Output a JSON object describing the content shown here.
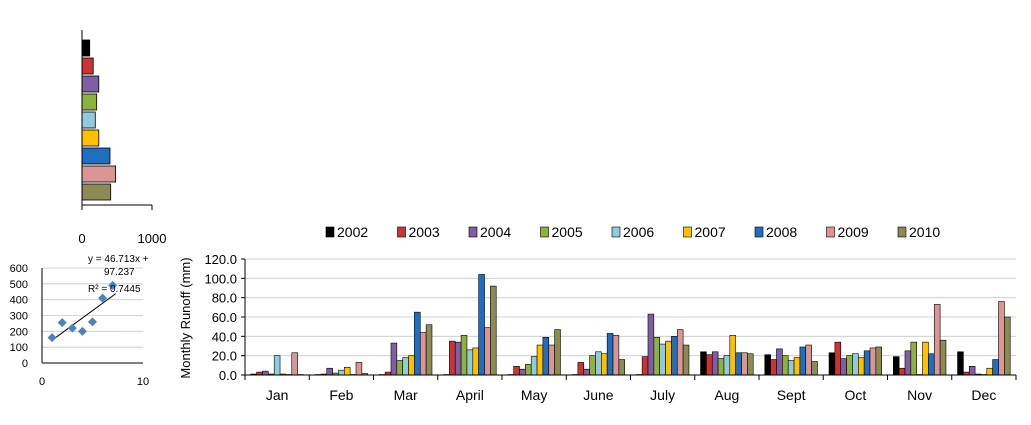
{
  "chart_data": [
    {
      "type": "bar",
      "orientation": "horizontal",
      "categories": [
        "2002",
        "2003",
        "2004",
        "2005",
        "2006",
        "2007",
        "2008",
        "2009",
        "2010"
      ],
      "values": [
        110,
        160,
        240,
        210,
        190,
        240,
        400,
        480,
        410
      ],
      "xlim": [
        0,
        1000
      ],
      "xticks": [
        "0",
        "1000"
      ],
      "grid": false
    },
    {
      "type": "scatter",
      "x": [
        1,
        2,
        3,
        4,
        5,
        6,
        7
      ],
      "y": [
        160,
        255,
        220,
        200,
        260,
        410,
        490
      ],
      "xlim": [
        0,
        10
      ],
      "ylim": [
        0,
        600
      ],
      "xticks": [
        "0",
        "10"
      ],
      "yticks": [
        "0",
        "100",
        "200",
        "300",
        "400",
        "500",
        "600"
      ],
      "trendline": {
        "slope": 46.713,
        "intercept": 97.237
      },
      "annotations": [
        "y = 46.713x +",
        "97.237",
        "R² = 0.7445"
      ],
      "grid": true
    },
    {
      "type": "bar",
      "title": "",
      "ylabel": "Monthly  Runoff (mm)",
      "xlabel": "",
      "ylim": [
        0,
        120
      ],
      "yticks": [
        "0.0",
        "20.0",
        "40.0",
        "60.0",
        "80.0",
        "100.0",
        "120.0"
      ],
      "grid": true,
      "legend": "top",
      "categories": [
        "Jan",
        "Feb",
        "Mar",
        "April",
        "May",
        "June",
        "July",
        "Aug",
        "Sept",
        "Oct",
        "Nov",
        "Dec"
      ],
      "series": [
        {
          "name": "2002",
          "values": [
            1.0,
            0.5,
            0.5,
            0.5,
            0.5,
            0.5,
            0.5,
            24.0,
            21.0,
            23.0,
            19.0,
            24.0
          ]
        },
        {
          "name": "2003",
          "values": [
            3.0,
            1.0,
            3.0,
            35.0,
            9.0,
            13.0,
            19.0,
            21.0,
            16.0,
            34.0,
            7.0,
            3.0
          ]
        },
        {
          "name": "2004",
          "values": [
            4.0,
            7.0,
            33.0,
            34.0,
            6.0,
            6.0,
            63.0,
            24.0,
            27.0,
            17.0,
            25.0,
            9.0
          ]
        },
        {
          "name": "2005",
          "values": [
            1.0,
            2.0,
            15.0,
            41.0,
            11.0,
            20.0,
            39.0,
            17.0,
            20.0,
            20.0,
            34.0,
            1.0
          ]
        },
        {
          "name": "2006",
          "values": [
            20.0,
            5.0,
            18.0,
            26.0,
            19.0,
            24.0,
            32.0,
            20.0,
            15.0,
            22.0,
            0.5,
            0.5
          ]
        },
        {
          "name": "2007",
          "values": [
            1.0,
            8.0,
            20.0,
            28.0,
            31.0,
            22.0,
            35.0,
            41.0,
            18.0,
            18.0,
            34.0,
            7.0
          ]
        },
        {
          "name": "2008",
          "values": [
            0.5,
            0.5,
            65.0,
            104.0,
            39.0,
            43.0,
            40.0,
            23.0,
            29.0,
            25.0,
            22.0,
            16.0
          ]
        },
        {
          "name": "2009",
          "values": [
            23.0,
            13.0,
            44.0,
            49.0,
            31.0,
            41.0,
            47.0,
            23.0,
            31.0,
            28.0,
            73.0,
            76.0
          ]
        },
        {
          "name": "2010",
          "values": [
            0.5,
            1.5,
            52.0,
            92.0,
            47.0,
            16.0,
            31.0,
            22.0,
            14.0,
            29.0,
            36.0,
            60.0
          ]
        }
      ]
    }
  ],
  "colors": {
    "2002": "#000000",
    "2003": "#CC3333",
    "2004": "#7F5FA4",
    "2005": "#8DB33E",
    "2006": "#8FCBDC",
    "2007": "#FFC000",
    "2008": "#1F6FC1",
    "2009": "#D99694",
    "2010": "#8C8A55",
    "scatter_marker": "#4F81BD",
    "axis": "#000000",
    "grid": "#C8C8C8"
  }
}
